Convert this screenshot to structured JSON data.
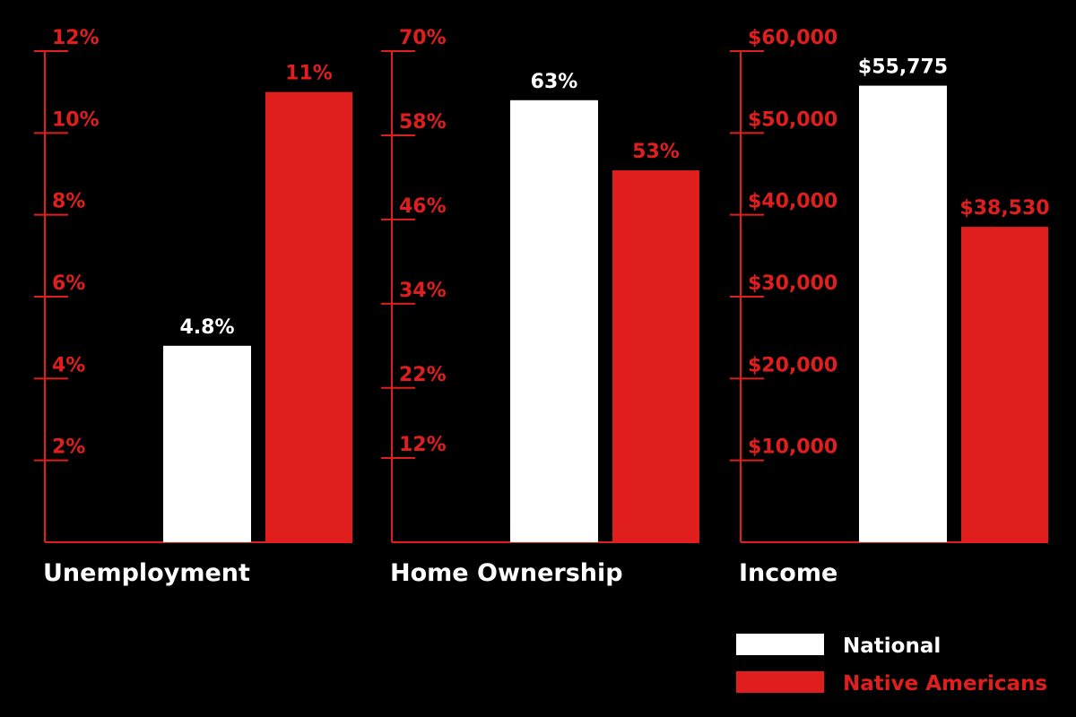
{
  "chart_data": [
    {
      "type": "bar",
      "title": "Unemployment",
      "ylim": [
        0,
        12
      ],
      "yticks": [
        {
          "value": 2,
          "label": "2%"
        },
        {
          "value": 4,
          "label": "4%"
        },
        {
          "value": 6,
          "label": "6%"
        },
        {
          "value": 8,
          "label": "8%"
        },
        {
          "value": 10,
          "label": "10%"
        },
        {
          "value": 12,
          "label": "12%"
        }
      ],
      "series": [
        {
          "values": [
            4.8
          ],
          "value_labels": [
            "4.8%"
          ]
        },
        {
          "values": [
            11
          ],
          "value_labels": [
            "11%"
          ]
        }
      ]
    },
    {
      "type": "bar",
      "title": "Home Ownership",
      "ylim": [
        0,
        70
      ],
      "yticks": [
        {
          "value": 12,
          "label": "12%"
        },
        {
          "value": 22,
          "label": "22%"
        },
        {
          "value": 34,
          "label": "34%"
        },
        {
          "value": 46,
          "label": "46%"
        },
        {
          "value": 58,
          "label": "58%"
        },
        {
          "value": 70,
          "label": "70%"
        }
      ],
      "series": [
        {
          "values": [
            63
          ],
          "value_labels": [
            "63%"
          ]
        },
        {
          "values": [
            53
          ],
          "value_labels": [
            "53%"
          ]
        }
      ]
    },
    {
      "type": "bar",
      "title": "Income",
      "ylim": [
        0,
        60000
      ],
      "yticks": [
        {
          "value": 10000,
          "label": "$10,000"
        },
        {
          "value": 20000,
          "label": "$20,000"
        },
        {
          "value": 30000,
          "label": "$30,000"
        },
        {
          "value": 40000,
          "label": "$40,000"
        },
        {
          "value": 50000,
          "label": "$50,000"
        },
        {
          "value": 60000,
          "label": "$60,000"
        }
      ],
      "series": [
        {
          "values": [
            55775
          ],
          "value_labels": [
            "$55,775"
          ]
        },
        {
          "values": [
            38530
          ],
          "value_labels": [
            "$38,530"
          ]
        }
      ]
    }
  ],
  "legend": [
    {
      "name": "National",
      "color": "#ffffff"
    },
    {
      "name": "Native Americans",
      "color": "#e01e1e"
    }
  ],
  "axis_color": "#e01e1e"
}
